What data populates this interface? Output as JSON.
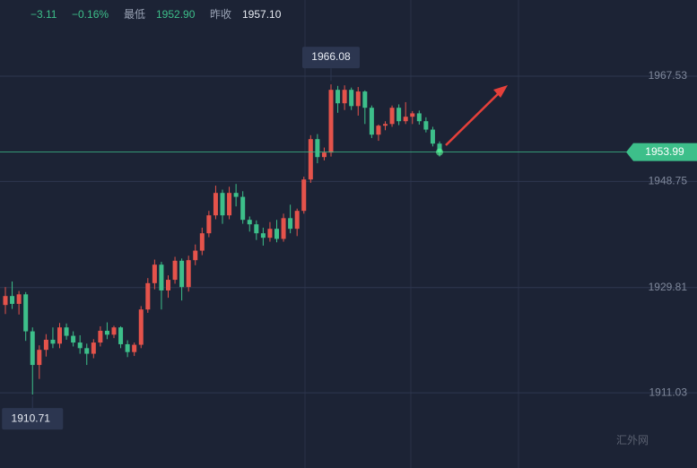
{
  "header": {
    "change": "−3.11",
    "change_percent": "−0.16%",
    "low_label": "最低",
    "low_value": "1952.90",
    "prev_close_label": "昨收",
    "prev_close_value": "1957.10"
  },
  "watermark": "汇外网",
  "chart_data": {
    "type": "candlestick",
    "up_color": "#e5534b",
    "down_color": "#3dbf8a",
    "open": [
      1926.7,
      1928.3,
      1926.9,
      1928.6,
      1922.0,
      1916.0,
      1918.7,
      1920.5,
      1919.8,
      1922.7,
      1921.2,
      1920.0,
      1919.0,
      1918.0,
      1920.0,
      1922.1,
      1921.4,
      1922.7,
      1919.7,
      1918.3,
      1919.6,
      1925.9,
      1930.6,
      1933.9,
      1929.3,
      1931.2,
      1934.6,
      1929.9,
      1934.7,
      1936.4,
      1939.5,
      1942.7,
      1946.7,
      1942.7,
      1946.7,
      1946.0,
      1941.9,
      1941.1,
      1939.5,
      1938.7,
      1940.3,
      1938.5,
      1942.2,
      1940.3,
      1943.5,
      1949.1,
      1956.3,
      1953.1,
      1953.9,
      1965.1,
      1962.7,
      1965.1,
      1962.2,
      1964.8,
      1961.9,
      1957.1,
      1958.7,
      1959.0,
      1961.9,
      1959.5,
      1960.3,
      1960.9,
      1959.5,
      1958.0,
      1955.5
    ],
    "high": [
      1929.9,
      1930.9,
      1929.2,
      1929.0,
      1922.7,
      1919.5,
      1921.5,
      1922.7,
      1923.5,
      1923.4,
      1922.0,
      1921.3,
      1919.8,
      1920.6,
      1922.9,
      1923.6,
      1923.0,
      1922.9,
      1920.4,
      1920.0,
      1926.5,
      1931.5,
      1934.8,
      1934.4,
      1932.0,
      1935.3,
      1935.0,
      1935.5,
      1937.5,
      1940.5,
      1943.5,
      1948.0,
      1947.3,
      1947.8,
      1948.3,
      1947.0,
      1942.5,
      1941.8,
      1940.5,
      1941.5,
      1941.9,
      1943.0,
      1944.6,
      1943.9,
      1949.6,
      1957.0,
      1957.2,
      1954.8,
      1966.08,
      1965.8,
      1965.9,
      1965.5,
      1965.6,
      1965.0,
      1962.3,
      1958.9,
      1959.5,
      1962.3,
      1962.5,
      1962.9,
      1961.3,
      1961.4,
      1960.2,
      1958.5,
      1955.9
    ],
    "low": [
      1925.1,
      1926.0,
      1925.0,
      1920.3,
      1910.71,
      1913.5,
      1917.5,
      1919.0,
      1919.0,
      1920.5,
      1919.3,
      1918.0,
      1916.0,
      1917.2,
      1919.3,
      1920.6,
      1920.8,
      1919.0,
      1917.4,
      1917.6,
      1919.0,
      1925.3,
      1929.5,
      1925.9,
      1928.0,
      1930.5,
      1927.5,
      1929.1,
      1933.8,
      1935.6,
      1938.8,
      1942.0,
      1941.2,
      1942.0,
      1944.3,
      1941.2,
      1939.8,
      1938.3,
      1937.3,
      1938.0,
      1937.9,
      1938.0,
      1939.5,
      1939.0,
      1943.0,
      1948.5,
      1952.0,
      1952.5,
      1953.2,
      1961.0,
      1961.5,
      1961.5,
      1960.5,
      1959.0,
      1956.5,
      1956.0,
      1957.9,
      1958.5,
      1958.8,
      1959.0,
      1959.0,
      1958.9,
      1957.5,
      1955.0,
      1953.2
    ],
    "close": [
      1928.3,
      1926.9,
      1928.6,
      1922.0,
      1916.0,
      1918.7,
      1920.5,
      1919.8,
      1922.7,
      1921.2,
      1920.0,
      1919.0,
      1918.0,
      1920.0,
      1922.1,
      1921.4,
      1922.7,
      1919.7,
      1918.3,
      1919.6,
      1925.9,
      1930.6,
      1933.9,
      1929.3,
      1931.2,
      1934.6,
      1929.9,
      1934.7,
      1936.4,
      1939.5,
      1942.7,
      1946.7,
      1942.7,
      1946.7,
      1946.0,
      1941.9,
      1941.1,
      1939.5,
      1938.7,
      1940.3,
      1938.5,
      1942.2,
      1940.3,
      1943.5,
      1949.1,
      1956.3,
      1953.1,
      1953.9,
      1965.1,
      1962.7,
      1965.1,
      1962.2,
      1964.8,
      1961.9,
      1957.1,
      1958.7,
      1959.0,
      1961.9,
      1959.5,
      1960.3,
      1960.9,
      1959.5,
      1958.0,
      1955.5,
      1953.99
    ],
    "ylim": [
      1897.61,
      1981.13
    ],
    "yticks": [
      1967.53,
      1948.75,
      1929.81,
      1911.03
    ],
    "high_label": 1966.08,
    "low_label": 1910.71,
    "last_price": 1953.99,
    "grid": true
  }
}
